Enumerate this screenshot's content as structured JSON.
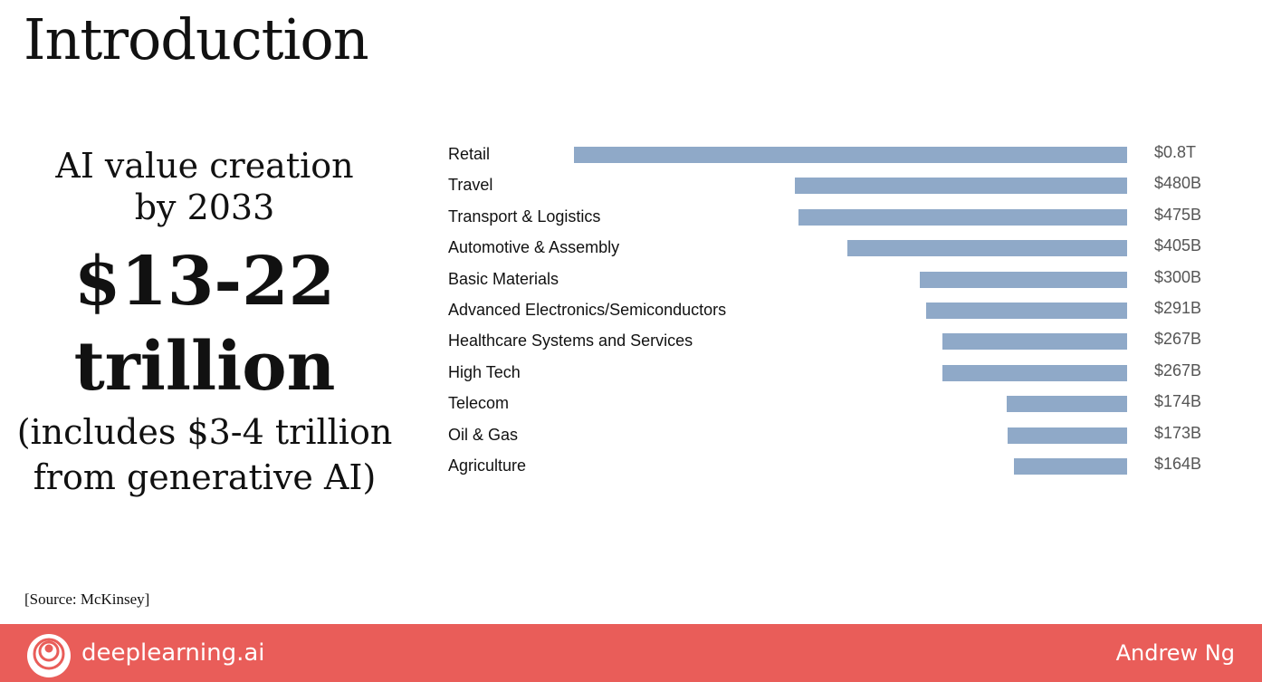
{
  "slide": {
    "title": "Introduction",
    "subtitle_line1": "AI value creation",
    "subtitle_line2": "by 2033",
    "headline_line1": "$13-22",
    "headline_line2": "trillion",
    "note_line1": "(includes $3-4 trillion",
    "note_line2": "from generative AI)",
    "source": "[Source:  McKinsey]"
  },
  "footer": {
    "brand": "deeplearning.ai",
    "author": "Andrew Ng",
    "background_color": "#e95d59",
    "logo_icon": "deeplearning-logo-icon"
  },
  "chart_data": {
    "type": "bar",
    "orientation": "horizontal",
    "bar_color": "#8fa9c8",
    "categories": [
      "Retail",
      "Travel",
      "Transport & Logistics",
      "Automotive & Assembly",
      "Basic Materials",
      "Advanced Electronics/Semiconductors",
      "Healthcare Systems and Services",
      "High Tech",
      "Telecom",
      "Oil & Gas",
      "Agriculture"
    ],
    "values": [
      800,
      480,
      475,
      405,
      300,
      291,
      267,
      267,
      174,
      173,
      164
    ],
    "value_labels": [
      "$0.8T",
      "$480B",
      "$475B",
      "$405B",
      "$300B",
      "$291B",
      "$267B",
      "$267B",
      "$174B",
      "$173B",
      "$164B"
    ],
    "xlabel": "",
    "ylabel": "",
    "grid": false
  }
}
